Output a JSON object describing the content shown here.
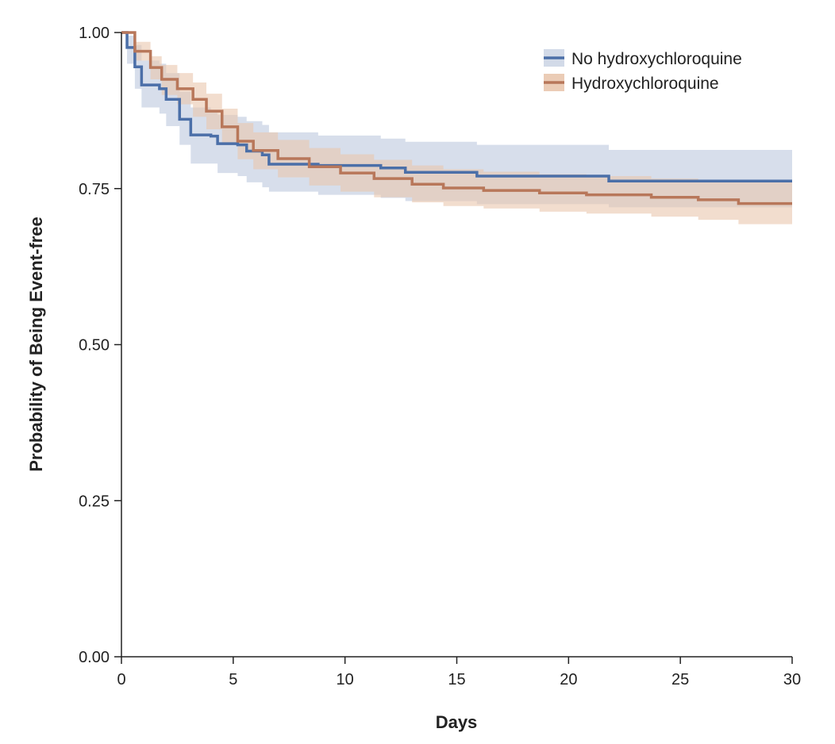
{
  "chart_data": {
    "type": "line",
    "subtype": "kaplan-meier",
    "title": "",
    "xlabel": "Days",
    "ylabel": "Probability of Being Event-free",
    "xlim": [
      0,
      30
    ],
    "ylim": [
      0,
      1
    ],
    "xticks": [
      "0",
      "5",
      "10",
      "15",
      "20",
      "25",
      "30"
    ],
    "xtick_values": [
      0,
      5,
      10,
      15,
      20,
      25,
      30
    ],
    "yticks": [
      "0.00",
      "0.25",
      "0.50",
      "0.75",
      "1.00"
    ],
    "ytick_values": [
      0,
      0.25,
      0.5,
      0.75,
      1.0
    ],
    "grid": false,
    "legend_position": "top-right",
    "series": [
      {
        "name": "No hydroxychloroquine",
        "color": "#4b6fa8",
        "band_color": "#cdd6e6",
        "t": [
          0,
          0.25,
          0.6,
          0.9,
          1.7,
          2.0,
          2.6,
          3.1,
          4.0,
          4.3,
          5.2,
          5.6,
          6.3,
          6.6,
          8.8,
          11.6,
          12.7,
          15.9,
          21.8,
          30
        ],
        "surv": [
          1.0,
          0.976,
          0.945,
          0.916,
          0.91,
          0.893,
          0.861,
          0.836,
          0.834,
          0.822,
          0.82,
          0.81,
          0.804,
          0.789,
          0.787,
          0.783,
          0.776,
          0.77,
          0.762,
          0.762
        ],
        "lo": [
          1.0,
          0.95,
          0.91,
          0.88,
          0.87,
          0.85,
          0.82,
          0.79,
          0.79,
          0.775,
          0.77,
          0.76,
          0.752,
          0.745,
          0.74,
          0.735,
          0.73,
          0.725,
          0.72,
          0.72
        ],
        "hi": [
          1.0,
          0.995,
          0.98,
          0.955,
          0.95,
          0.935,
          0.905,
          0.88,
          0.875,
          0.868,
          0.865,
          0.858,
          0.852,
          0.84,
          0.835,
          0.83,
          0.825,
          0.82,
          0.812,
          0.812
        ]
      },
      {
        "name": "Hydroxychloroquine",
        "color": "#b8775a",
        "band_color": "#e9c7ae",
        "t": [
          0,
          0.6,
          1.3,
          1.8,
          2.5,
          3.2,
          3.8,
          4.5,
          5.2,
          5.9,
          7.0,
          8.4,
          9.8,
          11.3,
          13.0,
          14.4,
          16.2,
          18.7,
          20.8,
          23.7,
          25.8,
          27.6,
          30
        ],
        "surv": [
          1.0,
          0.97,
          0.944,
          0.925,
          0.91,
          0.893,
          0.874,
          0.849,
          0.826,
          0.811,
          0.798,
          0.785,
          0.775,
          0.766,
          0.757,
          0.751,
          0.747,
          0.743,
          0.74,
          0.736,
          0.732,
          0.726,
          0.726
        ],
        "lo": [
          1.0,
          0.955,
          0.925,
          0.9,
          0.885,
          0.865,
          0.845,
          0.82,
          0.797,
          0.781,
          0.768,
          0.755,
          0.745,
          0.736,
          0.728,
          0.722,
          0.718,
          0.713,
          0.71,
          0.705,
          0.7,
          0.693,
          0.693
        ],
        "hi": [
          1.0,
          0.985,
          0.962,
          0.948,
          0.935,
          0.92,
          0.902,
          0.878,
          0.855,
          0.84,
          0.828,
          0.815,
          0.805,
          0.796,
          0.787,
          0.781,
          0.777,
          0.773,
          0.77,
          0.766,
          0.763,
          0.76,
          0.76
        ]
      }
    ]
  }
}
